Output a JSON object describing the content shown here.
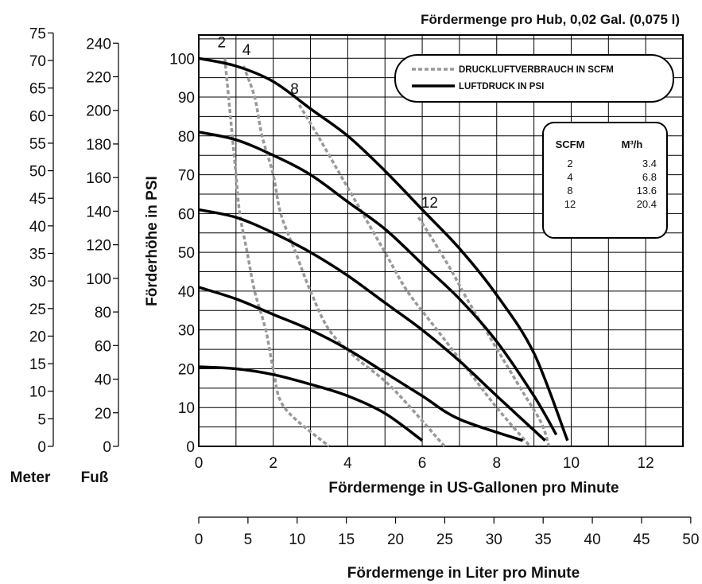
{
  "chart_data": {
    "type": "line",
    "title": "Fördermenge pro Hub, 0,02 Gal. (0,075 l)",
    "xlabel": "Fördermenge in US-Gallonen pro Minute",
    "ylabel": "Förderhöhe in PSI",
    "xlim": [
      0,
      13
    ],
    "ylim": [
      0,
      106
    ],
    "grid": true,
    "x_ticks": [
      0,
      2,
      4,
      6,
      8,
      10,
      12
    ],
    "y_ticks": [
      0,
      10,
      20,
      30,
      40,
      50,
      60,
      70,
      80,
      90,
      100
    ],
    "secondary_x_axis": {
      "label": "Fördermenge in Liter pro Minute",
      "ticks": [
        0,
        5,
        10,
        15,
        20,
        25,
        30,
        35,
        40,
        45,
        50
      ]
    },
    "left_axes": [
      {
        "label": "Meter",
        "ticks": [
          0,
          5,
          10,
          15,
          20,
          25,
          30,
          35,
          40,
          45,
          50,
          55,
          60,
          65,
          70,
          75
        ]
      },
      {
        "label": "Fuß",
        "ticks": [
          0,
          20,
          40,
          60,
          80,
          100,
          120,
          140,
          160,
          180,
          200,
          220,
          240
        ]
      }
    ],
    "legend": {
      "position": "top-right",
      "entries": [
        {
          "label": "DRUCKLUFTVERBRAUCH IN SCFM",
          "style": "dashed",
          "color": "#999999"
        },
        {
          "label": "LUFTDRUCK IN PSI",
          "style": "solid",
          "color": "#000000"
        }
      ]
    },
    "pressure_curves": [
      {
        "points": [
          [
            0,
            20.5
          ],
          [
            1,
            20
          ],
          [
            2,
            18.5
          ],
          [
            3,
            16
          ],
          [
            4,
            13
          ],
          [
            5,
            8.5
          ],
          [
            6,
            1.5
          ]
        ]
      },
      {
        "points": [
          [
            0,
            41
          ],
          [
            1,
            38
          ],
          [
            2,
            34
          ],
          [
            3,
            30
          ],
          [
            4,
            25
          ],
          [
            5,
            19
          ],
          [
            6,
            13
          ],
          [
            7,
            7
          ],
          [
            8.7,
            1.5
          ]
        ]
      },
      {
        "points": [
          [
            0,
            61
          ],
          [
            1,
            59
          ],
          [
            2,
            55
          ],
          [
            3,
            50
          ],
          [
            4,
            44
          ],
          [
            5,
            37
          ],
          [
            6,
            30
          ],
          [
            7,
            22
          ],
          [
            8,
            13
          ],
          [
            9.3,
            1.5
          ]
        ]
      },
      {
        "points": [
          [
            0,
            81
          ],
          [
            1,
            79
          ],
          [
            2,
            75
          ],
          [
            3,
            70
          ],
          [
            4,
            63
          ],
          [
            5,
            56
          ],
          [
            6,
            47
          ],
          [
            7,
            38
          ],
          [
            8,
            27
          ],
          [
            9,
            13
          ],
          [
            9.6,
            3
          ]
        ]
      },
      {
        "points": [
          [
            0,
            100
          ],
          [
            1,
            98
          ],
          [
            2,
            94
          ],
          [
            3,
            87
          ],
          [
            4,
            80
          ],
          [
            5,
            71
          ],
          [
            6,
            61
          ],
          [
            7,
            51
          ],
          [
            8,
            39
          ],
          [
            9,
            24
          ],
          [
            9.9,
            1.5
          ]
        ]
      }
    ],
    "air_curves": [
      {
        "label": "2",
        "points": [
          [
            0.7,
            100
          ],
          [
            0.8,
            90
          ],
          [
            0.9,
            80
          ],
          [
            1.0,
            70
          ],
          [
            1.1,
            60
          ],
          [
            1.3,
            50
          ],
          [
            1.5,
            40
          ],
          [
            1.8,
            30
          ],
          [
            2.0,
            20
          ],
          [
            2.3,
            10
          ],
          [
            3.5,
            0
          ]
        ]
      },
      {
        "label": "4",
        "points": [
          [
            1.2,
            98
          ],
          [
            1.5,
            90
          ],
          [
            1.7,
            80
          ],
          [
            2.0,
            70
          ],
          [
            2.2,
            60
          ],
          [
            2.6,
            50
          ],
          [
            3.0,
            40
          ],
          [
            3.5,
            30
          ],
          [
            4.2,
            23
          ],
          [
            5.2,
            15
          ],
          [
            6.6,
            0
          ]
        ]
      },
      {
        "label": "8",
        "points": [
          [
            2.7,
            88
          ],
          [
            3.2,
            80
          ],
          [
            3.8,
            70
          ],
          [
            4.4,
            60
          ],
          [
            5.0,
            50
          ],
          [
            5.6,
            40
          ],
          [
            6.4,
            30
          ],
          [
            7.2,
            20
          ],
          [
            8.0,
            10
          ],
          [
            8.9,
            0
          ]
        ]
      },
      {
        "label": "12",
        "points": [
          [
            5.9,
            59
          ],
          [
            6.3,
            53
          ],
          [
            6.8,
            45
          ],
          [
            7.2,
            38
          ],
          [
            7.7,
            30
          ],
          [
            8.2,
            22
          ],
          [
            8.7,
            14
          ],
          [
            9.2,
            6
          ],
          [
            9.4,
            0
          ]
        ]
      }
    ],
    "scfm_table": {
      "headers": [
        "SCFM",
        "M³/h"
      ],
      "rows": [
        [
          "2",
          "3.4"
        ],
        [
          "4",
          "6.8"
        ],
        [
          "8",
          "13.6"
        ],
        [
          "12",
          "20.4"
        ]
      ]
    }
  }
}
